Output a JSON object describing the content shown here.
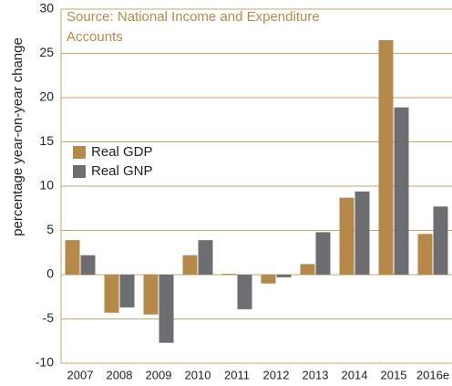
{
  "chart_data": {
    "type": "bar",
    "annotation": [
      "Source: National Income and Expenditure",
      "Accounts"
    ],
    "y_label": "percentage year-on-year change",
    "categories": [
      "2007",
      "2008",
      "2009",
      "2010",
      "2011",
      "2012",
      "2013",
      "2014",
      "2015",
      "2016e"
    ],
    "series": [
      {
        "name": "Real GDP",
        "color": "#b5894a",
        "values": [
          3.9,
          -4.3,
          -4.5,
          2.2,
          0.1,
          -1.0,
          1.2,
          8.7,
          26.5,
          4.6
        ]
      },
      {
        "name": "Real GNP",
        "color": "#6d6e71",
        "values": [
          2.2,
          -3.7,
          -7.7,
          3.9,
          -3.9,
          -0.3,
          4.8,
          9.4,
          18.9,
          7.7
        ]
      }
    ],
    "ylim": [
      -10,
      30
    ],
    "yticks": [
      -10,
      -5,
      0,
      5,
      10,
      15,
      20,
      25,
      30
    ],
    "grid": true,
    "legend": "left"
  }
}
